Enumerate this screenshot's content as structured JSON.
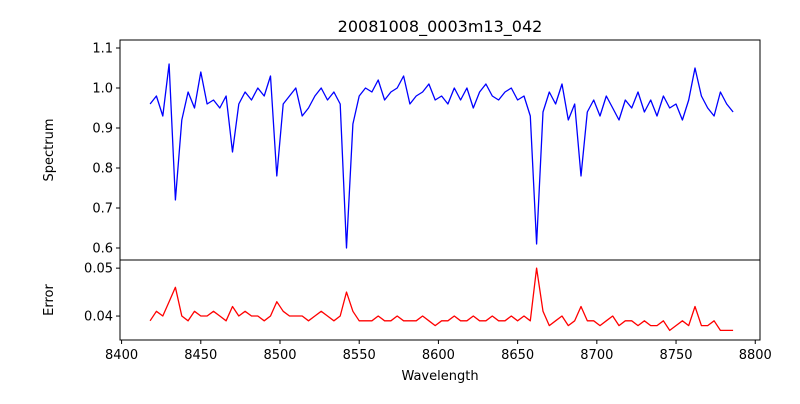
{
  "chart_data": [
    {
      "type": "line",
      "title": "20081008_0003m13_042",
      "xlabel": "",
      "ylabel": "Spectrum",
      "xlim": [
        8399,
        8803
      ],
      "ylim": [
        0.57,
        1.12
      ],
      "yticks": [
        "0.6",
        "0.7",
        "0.8",
        "0.9",
        "1.0",
        "1.1"
      ],
      "color": "#0000ff",
      "x": [
        8418,
        8422,
        8426,
        8430,
        8434,
        8438,
        8442,
        8446,
        8450,
        8454,
        8458,
        8462,
        8466,
        8470,
        8474,
        8478,
        8482,
        8486,
        8490,
        8494,
        8498,
        8502,
        8506,
        8510,
        8514,
        8518,
        8522,
        8526,
        8530,
        8534,
        8538,
        8542,
        8546,
        8550,
        8554,
        8558,
        8562,
        8566,
        8570,
        8574,
        8578,
        8582,
        8586,
        8590,
        8594,
        8598,
        8602,
        8606,
        8610,
        8614,
        8618,
        8622,
        8626,
        8630,
        8634,
        8638,
        8642,
        8646,
        8650,
        8654,
        8658,
        8662,
        8666,
        8670,
        8674,
        8678,
        8682,
        8686,
        8690,
        8694,
        8698,
        8702,
        8706,
        8710,
        8714,
        8718,
        8722,
        8726,
        8730,
        8734,
        8738,
        8742,
        8746,
        8750,
        8754,
        8758,
        8762,
        8766,
        8770,
        8774,
        8778,
        8782,
        8786
      ],
      "values": [
        0.96,
        0.98,
        0.93,
        1.06,
        0.72,
        0.92,
        0.99,
        0.95,
        1.04,
        0.96,
        0.97,
        0.95,
        0.98,
        0.84,
        0.96,
        0.99,
        0.97,
        1.0,
        0.98,
        1.03,
        0.78,
        0.96,
        0.98,
        1.0,
        0.93,
        0.95,
        0.98,
        1.0,
        0.97,
        0.99,
        0.96,
        0.6,
        0.91,
        0.98,
        1.0,
        0.99,
        1.02,
        0.97,
        0.99,
        1.0,
        1.03,
        0.96,
        0.98,
        0.99,
        1.01,
        0.97,
        0.98,
        0.96,
        1.0,
        0.97,
        1.0,
        0.95,
        0.99,
        1.01,
        0.98,
        0.97,
        0.99,
        1.0,
        0.97,
        0.98,
        0.93,
        0.61,
        0.94,
        0.99,
        0.96,
        1.01,
        0.92,
        0.96,
        0.78,
        0.94,
        0.97,
        0.93,
        0.98,
        0.95,
        0.92,
        0.97,
        0.95,
        0.99,
        0.94,
        0.97,
        0.93,
        0.98,
        0.95,
        0.96,
        0.92,
        0.97,
        1.05,
        0.98,
        0.95,
        0.93,
        0.99,
        0.96,
        0.94
      ]
    },
    {
      "type": "line",
      "xlabel": "Wavelength",
      "ylabel": "Error",
      "xlim": [
        8399,
        8803
      ],
      "ylim": [
        0.035,
        0.0517
      ],
      "yticks": [
        "0.04",
        "0.05"
      ],
      "xticks": [
        "8400",
        "8450",
        "8500",
        "8550",
        "8600",
        "8650",
        "8700",
        "8750",
        "8800"
      ],
      "color": "#ff0000",
      "x": [
        8418,
        8422,
        8426,
        8430,
        8434,
        8438,
        8442,
        8446,
        8450,
        8454,
        8458,
        8462,
        8466,
        8470,
        8474,
        8478,
        8482,
        8486,
        8490,
        8494,
        8498,
        8502,
        8506,
        8510,
        8514,
        8518,
        8522,
        8526,
        8530,
        8534,
        8538,
        8542,
        8546,
        8550,
        8554,
        8558,
        8562,
        8566,
        8570,
        8574,
        8578,
        8582,
        8586,
        8590,
        8594,
        8598,
        8602,
        8606,
        8610,
        8614,
        8618,
        8622,
        8626,
        8630,
        8634,
        8638,
        8642,
        8646,
        8650,
        8654,
        8658,
        8662,
        8666,
        8670,
        8674,
        8678,
        8682,
        8686,
        8690,
        8694,
        8698,
        8702,
        8706,
        8710,
        8714,
        8718,
        8722,
        8726,
        8730,
        8734,
        8738,
        8742,
        8746,
        8750,
        8754,
        8758,
        8762,
        8766,
        8770,
        8774,
        8778,
        8782,
        8786
      ],
      "values": [
        0.039,
        0.041,
        0.04,
        0.043,
        0.046,
        0.04,
        0.039,
        0.041,
        0.04,
        0.04,
        0.041,
        0.04,
        0.039,
        0.042,
        0.04,
        0.041,
        0.04,
        0.04,
        0.039,
        0.04,
        0.043,
        0.041,
        0.04,
        0.04,
        0.04,
        0.039,
        0.04,
        0.041,
        0.04,
        0.039,
        0.04,
        0.045,
        0.041,
        0.039,
        0.039,
        0.039,
        0.04,
        0.039,
        0.039,
        0.04,
        0.039,
        0.039,
        0.039,
        0.04,
        0.039,
        0.038,
        0.039,
        0.039,
        0.04,
        0.039,
        0.039,
        0.04,
        0.039,
        0.039,
        0.04,
        0.039,
        0.039,
        0.04,
        0.039,
        0.04,
        0.039,
        0.05,
        0.041,
        0.038,
        0.039,
        0.04,
        0.038,
        0.039,
        0.042,
        0.039,
        0.039,
        0.038,
        0.039,
        0.04,
        0.038,
        0.039,
        0.039,
        0.038,
        0.039,
        0.038,
        0.038,
        0.039,
        0.037,
        0.038,
        0.039,
        0.038,
        0.042,
        0.038,
        0.038,
        0.039,
        0.037,
        0.037,
        0.037
      ]
    }
  ]
}
